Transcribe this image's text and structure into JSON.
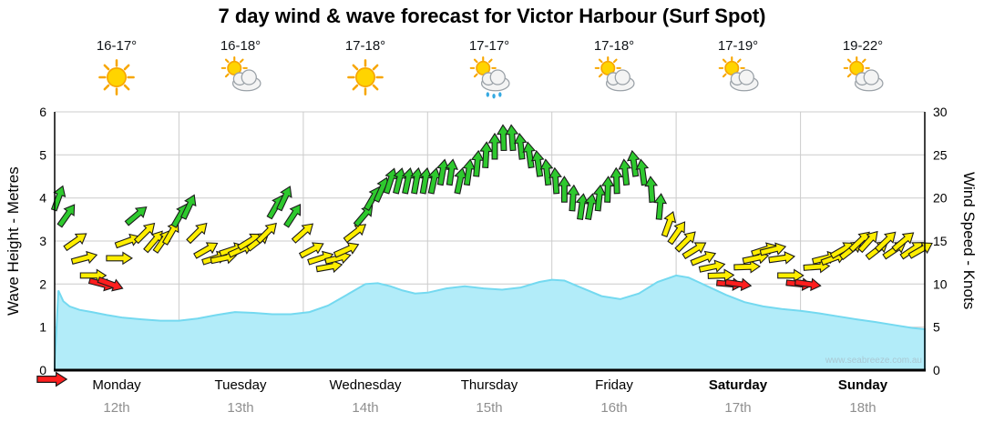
{
  "title": "7 day wind & wave forecast for Victor Harbour (Surf Spot)",
  "watermark": "www.seabreeze.com.au",
  "days": [
    {
      "name": "Monday",
      "date": "12th",
      "temp": "16-17°",
      "icon": "sunny"
    },
    {
      "name": "Tuesday",
      "date": "13th",
      "temp": "16-18°",
      "icon": "partly-cloudy"
    },
    {
      "name": "Wednesday",
      "date": "14th",
      "temp": "17-18°",
      "icon": "sunny"
    },
    {
      "name": "Thursday",
      "date": "15th",
      "temp": "17-17°",
      "icon": "showers"
    },
    {
      "name": "Friday",
      "date": "16th",
      "temp": "17-18°",
      "icon": "partly-cloudy"
    },
    {
      "name": "Saturday",
      "date": "17th",
      "temp": "17-19°",
      "icon": "partly-cloudy"
    },
    {
      "name": "Sunday",
      "date": "18th",
      "temp": "19-22°",
      "icon": "partly-cloudy"
    }
  ],
  "axes": {
    "left_label": "Wave Height - Metres",
    "right_label": "Wind Speed - Knots",
    "wave_ticks": [
      0,
      1,
      2,
      3,
      4,
      5,
      6
    ],
    "wind_ticks": [
      0,
      5,
      10,
      15,
      20,
      25,
      30
    ]
  },
  "chart_data": {
    "type": "line",
    "x_range_days": [
      0,
      7
    ],
    "x_categories": [
      "Monday 12th",
      "Tuesday 13th",
      "Wednesday 14th",
      "Thursday 15th",
      "Friday 16th",
      "Saturday 17th",
      "Sunday 18th"
    ],
    "colors": {
      "green": "#2ec92e",
      "yellow": "#ffee00",
      "red": "#ff1e1e",
      "wave_fill": "#b2ecf9",
      "wave_stroke": "#74d9f0",
      "grid": "#cccccc",
      "axis": "#000000"
    },
    "wave_height_m": {
      "ylim": [
        0,
        6
      ],
      "points": [
        [
          0.0,
          0.15
        ],
        [
          0.03,
          1.85
        ],
        [
          0.07,
          1.6
        ],
        [
          0.12,
          1.48
        ],
        [
          0.2,
          1.4
        ],
        [
          0.3,
          1.35
        ],
        [
          0.42,
          1.28
        ],
        [
          0.55,
          1.22
        ],
        [
          0.7,
          1.18
        ],
        [
          0.85,
          1.15
        ],
        [
          1.0,
          1.15
        ],
        [
          1.15,
          1.2
        ],
        [
          1.3,
          1.28
        ],
        [
          1.45,
          1.35
        ],
        [
          1.6,
          1.33
        ],
        [
          1.75,
          1.3
        ],
        [
          1.9,
          1.3
        ],
        [
          2.05,
          1.35
        ],
        [
          2.2,
          1.5
        ],
        [
          2.35,
          1.75
        ],
        [
          2.5,
          2.0
        ],
        [
          2.6,
          2.02
        ],
        [
          2.7,
          1.95
        ],
        [
          2.8,
          1.85
        ],
        [
          2.9,
          1.78
        ],
        [
          3.0,
          1.8
        ],
        [
          3.15,
          1.9
        ],
        [
          3.3,
          1.95
        ],
        [
          3.45,
          1.9
        ],
        [
          3.6,
          1.87
        ],
        [
          3.75,
          1.92
        ],
        [
          3.9,
          2.05
        ],
        [
          4.0,
          2.1
        ],
        [
          4.1,
          2.08
        ],
        [
          4.25,
          1.9
        ],
        [
          4.4,
          1.72
        ],
        [
          4.55,
          1.65
        ],
        [
          4.7,
          1.78
        ],
        [
          4.85,
          2.05
        ],
        [
          5.0,
          2.2
        ],
        [
          5.1,
          2.15
        ],
        [
          5.25,
          1.95
        ],
        [
          5.4,
          1.75
        ],
        [
          5.55,
          1.58
        ],
        [
          5.7,
          1.48
        ],
        [
          5.85,
          1.42
        ],
        [
          6.0,
          1.38
        ],
        [
          6.15,
          1.32
        ],
        [
          6.3,
          1.25
        ],
        [
          6.45,
          1.18
        ],
        [
          6.6,
          1.12
        ],
        [
          6.75,
          1.05
        ],
        [
          6.9,
          0.98
        ],
        [
          7.0,
          0.95
        ]
      ]
    },
    "wind_knots": {
      "ylim": [
        0,
        30
      ],
      "direction_convention": "degrees clockwise, 0 = arrow pointing up",
      "speed_color_rule": {
        "red": "<=10",
        "yellow": "11-17",
        "green": ">=18"
      },
      "points": [
        [
          0.03,
          20,
          20
        ],
        [
          0.1,
          18,
          35
        ],
        [
          0.17,
          15,
          55
        ],
        [
          0.24,
          13,
          75
        ],
        [
          0.31,
          11,
          90
        ],
        [
          0.38,
          10,
          105
        ],
        [
          0.45,
          10,
          110
        ],
        [
          0.52,
          13,
          90
        ],
        [
          0.59,
          15,
          70
        ],
        [
          0.66,
          18,
          50
        ],
        [
          0.73,
          16,
          45
        ],
        [
          0.8,
          15,
          40
        ],
        [
          0.87,
          15,
          35
        ],
        [
          0.94,
          16,
          30
        ],
        [
          1.01,
          18,
          30
        ],
        [
          1.08,
          19,
          25
        ],
        [
          1.15,
          16,
          45
        ],
        [
          1.22,
          14,
          60
        ],
        [
          1.29,
          13,
          72
        ],
        [
          1.36,
          13,
          78
        ],
        [
          1.43,
          14,
          72
        ],
        [
          1.5,
          14,
          66
        ],
        [
          1.57,
          15,
          58
        ],
        [
          1.64,
          15,
          52
        ],
        [
          1.71,
          16,
          45
        ],
        [
          1.78,
          19,
          30
        ],
        [
          1.85,
          20,
          25
        ],
        [
          1.92,
          18,
          33
        ],
        [
          2.0,
          16,
          48
        ],
        [
          2.07,
          14,
          62
        ],
        [
          2.14,
          13,
          72
        ],
        [
          2.21,
          12,
          80
        ],
        [
          2.28,
          13,
          76
        ],
        [
          2.35,
          14,
          66
        ],
        [
          2.42,
          16,
          52
        ],
        [
          2.49,
          18,
          40
        ],
        [
          2.56,
          20,
          30
        ],
        [
          2.63,
          21,
          24
        ],
        [
          2.7,
          22,
          18
        ],
        [
          2.77,
          22,
          14
        ],
        [
          2.84,
          22,
          12
        ],
        [
          2.91,
          22,
          10
        ],
        [
          2.98,
          22,
          10
        ],
        [
          3.05,
          22,
          12
        ],
        [
          3.12,
          23,
          10
        ],
        [
          3.19,
          23,
          8
        ],
        [
          3.26,
          22,
          12
        ],
        [
          3.33,
          23,
          8
        ],
        [
          3.4,
          24,
          5
        ],
        [
          3.47,
          25,
          3
        ],
        [
          3.54,
          26,
          0
        ],
        [
          3.61,
          27,
          358
        ],
        [
          3.68,
          27,
          356
        ],
        [
          3.75,
          26,
          354
        ],
        [
          3.82,
          25,
          352
        ],
        [
          3.89,
          24,
          352
        ],
        [
          3.96,
          23,
          354
        ],
        [
          4.03,
          22,
          356
        ],
        [
          4.1,
          21,
          0
        ],
        [
          4.17,
          20,
          4
        ],
        [
          4.24,
          19,
          8
        ],
        [
          4.31,
          19,
          10
        ],
        [
          4.38,
          20,
          6
        ],
        [
          4.45,
          21,
          2
        ],
        [
          4.52,
          22,
          358
        ],
        [
          4.59,
          23,
          354
        ],
        [
          4.66,
          24,
          352
        ],
        [
          4.73,
          23,
          352
        ],
        [
          4.8,
          21,
          356
        ],
        [
          4.87,
          19,
          5
        ],
        [
          4.94,
          17,
          20
        ],
        [
          5.01,
          16,
          35
        ],
        [
          5.08,
          15,
          45
        ],
        [
          5.15,
          14,
          58
        ],
        [
          5.22,
          13,
          68
        ],
        [
          5.29,
          12,
          78
        ],
        [
          5.36,
          11,
          88
        ],
        [
          5.43,
          10,
          95
        ],
        [
          5.5,
          10,
          98
        ],
        [
          5.57,
          12,
          88
        ],
        [
          5.64,
          13,
          78
        ],
        [
          5.71,
          14,
          72
        ],
        [
          5.78,
          14,
          76
        ],
        [
          5.85,
          13,
          82
        ],
        [
          5.92,
          11,
          90
        ],
        [
          5.99,
          10,
          96
        ],
        [
          6.06,
          10,
          98
        ],
        [
          6.13,
          12,
          86
        ],
        [
          6.2,
          13,
          76
        ],
        [
          6.27,
          13,
          70
        ],
        [
          6.34,
          14,
          60
        ],
        [
          6.41,
          14,
          52
        ],
        [
          6.48,
          15,
          46
        ],
        [
          6.55,
          15,
          42
        ],
        [
          6.62,
          14,
          52
        ],
        [
          6.69,
          15,
          46
        ],
        [
          6.76,
          14,
          56
        ],
        [
          6.83,
          15,
          50
        ],
        [
          6.9,
          14,
          56
        ],
        [
          6.97,
          14,
          60
        ]
      ]
    }
  }
}
